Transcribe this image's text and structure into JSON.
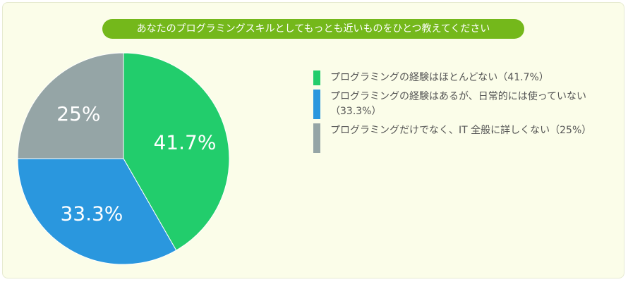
{
  "title": "あなたのプログラミングスキルとしてもっとも近いものをひとつ教えてください",
  "chart_data": {
    "type": "pie",
    "slices": [
      {
        "label": "プログラミングの経験はほとんどない（41.7%）",
        "value": 41.7,
        "display": "41.7%",
        "color": "#22cd6c"
      },
      {
        "label": "プログラミングの経験はあるが、日常的には使っていない（33.3%）",
        "value": 33.3,
        "display": "33.3%",
        "color": "#2a97de"
      },
      {
        "label": "プログラミングだけでなく、IT 全般に詳しくない（25%）",
        "value": 25,
        "display": "25%",
        "color": "#95a5a6"
      }
    ],
    "legend_position": "right"
  }
}
